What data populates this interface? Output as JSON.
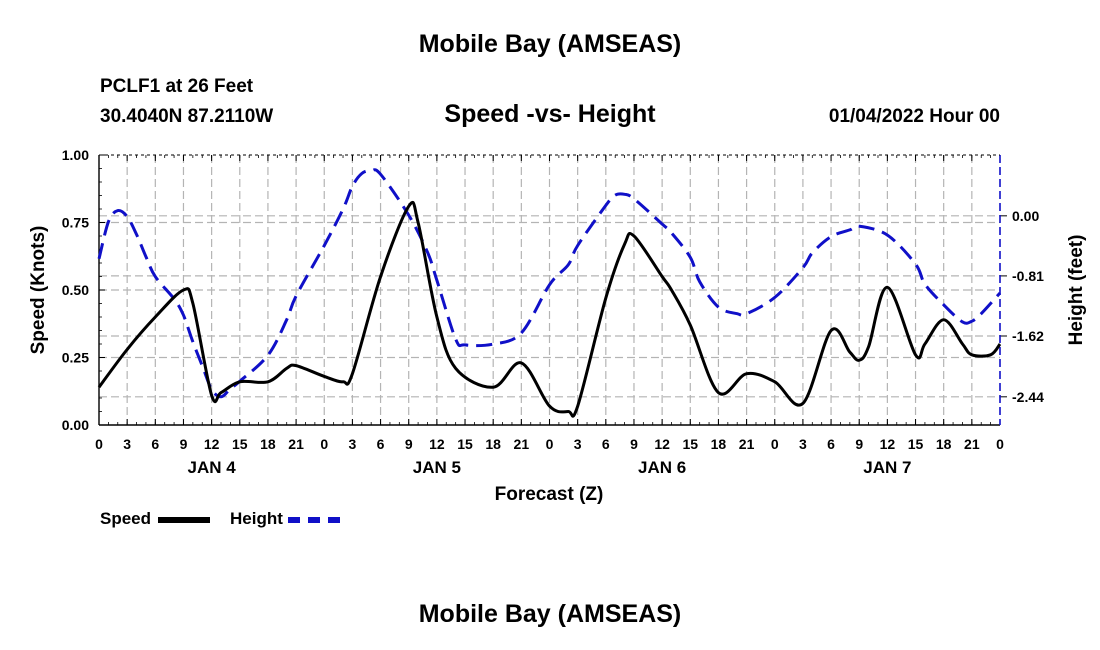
{
  "page": {
    "top_title": "Mobile Bay (AMSEAS)",
    "bottom_title": "Mobile Bay (AMSEAS)"
  },
  "header": {
    "station": "PCLF1 at 26 Feet",
    "coords": "30.4040N  87.2110W",
    "datetime": "01/04/2022 Hour 00"
  },
  "colors": {
    "speed": "#000000",
    "height": "#1010c8",
    "grid": "#b4b4b4"
  },
  "chart_data": {
    "type": "line",
    "title": "Speed -vs- Height",
    "xlabel": "Forecast (Z)",
    "ylabel": "Speed (Knots)",
    "y2label": "Height (feet)",
    "xlim": [
      0,
      96
    ],
    "ylim": [
      0,
      1.0
    ],
    "y2lim": [
      -2.82,
      0.82
    ],
    "x_ticks": [
      0,
      3,
      6,
      9,
      12,
      15,
      18,
      21,
      24,
      27,
      30,
      33,
      36,
      39,
      42,
      45,
      48,
      51,
      54,
      57,
      60,
      63,
      66,
      69,
      72,
      75,
      78,
      81,
      84,
      87,
      90,
      93,
      96
    ],
    "x_tick_labels": [
      "0",
      "3",
      "6",
      "9",
      "12",
      "15",
      "18",
      "21",
      "0",
      "3",
      "6",
      "9",
      "12",
      "15",
      "18",
      "21",
      "0",
      "3",
      "6",
      "9",
      "12",
      "15",
      "18",
      "21",
      "0",
      "3",
      "6",
      "9",
      "12",
      "15",
      "18",
      "21",
      "0"
    ],
    "y_ticks": [
      0.0,
      0.25,
      0.5,
      0.75,
      1.0
    ],
    "y_tick_labels": [
      "0.00",
      "0.25",
      "0.50",
      "0.75",
      "1.00"
    ],
    "y2_ticks": [
      0.0,
      -0.81,
      -1.62,
      -2.44
    ],
    "y2_tick_labels": [
      "0.00",
      "-0.81",
      "-1.62",
      "-2.44"
    ],
    "day_labels": [
      {
        "x": 12,
        "label": "JAN 4"
      },
      {
        "x": 36,
        "label": "JAN 5"
      },
      {
        "x": 60,
        "label": "JAN 6"
      },
      {
        "x": 84,
        "label": "JAN 7"
      }
    ],
    "grid": true,
    "series": [
      {
        "name": "Speed",
        "axis": "left",
        "style": "solid",
        "x": [
          0,
          3,
          6,
          9,
          10,
          12,
          13,
          15,
          18,
          20,
          21,
          24,
          26,
          27,
          30,
          33,
          34,
          36,
          38,
          42,
          45,
          48,
          50,
          51,
          54,
          56,
          57,
          60,
          61,
          63,
          66,
          69,
          72,
          75,
          78,
          80,
          81,
          82,
          84,
          87,
          88,
          90,
          92,
          93,
          95,
          96
        ],
        "values": [
          0.14,
          0.28,
          0.4,
          0.5,
          0.45,
          0.11,
          0.12,
          0.16,
          0.16,
          0.21,
          0.22,
          0.18,
          0.16,
          0.19,
          0.55,
          0.81,
          0.75,
          0.4,
          0.21,
          0.14,
          0.23,
          0.07,
          0.05,
          0.07,
          0.47,
          0.67,
          0.7,
          0.55,
          0.5,
          0.37,
          0.12,
          0.19,
          0.16,
          0.08,
          0.35,
          0.27,
          0.24,
          0.29,
          0.51,
          0.26,
          0.3,
          0.39,
          0.3,
          0.26,
          0.26,
          0.3
        ]
      },
      {
        "name": "Height",
        "axis": "right",
        "style": "dashed",
        "x": [
          0,
          1,
          2,
          3,
          4,
          5,
          6,
          8,
          9,
          10,
          11,
          12,
          13,
          14,
          15,
          18,
          20,
          21,
          24,
          26,
          27,
          28,
          29,
          30,
          33,
          35,
          36,
          38,
          39,
          42,
          45,
          48,
          50,
          51,
          54,
          55,
          56,
          57,
          60,
          61,
          63,
          64,
          66,
          68,
          69,
          72,
          75,
          76,
          78,
          80,
          81,
          84,
          87,
          88,
          90,
          92,
          93,
          94,
          96
        ],
        "values": [
          -0.58,
          -0.08,
          0.07,
          -0.01,
          -0.25,
          -0.55,
          -0.82,
          -1.12,
          -1.34,
          -1.7,
          -2.02,
          -2.34,
          -2.44,
          -2.33,
          -2.23,
          -1.88,
          -1.4,
          -1.08,
          -0.4,
          0.09,
          0.4,
          0.57,
          0.61,
          0.56,
          0.01,
          -0.49,
          -0.87,
          -1.66,
          -1.74,
          -1.73,
          -1.58,
          -0.93,
          -0.66,
          -0.4,
          0.14,
          0.28,
          0.29,
          0.23,
          -0.11,
          -0.23,
          -0.56,
          -0.89,
          -1.23,
          -1.32,
          -1.32,
          -1.1,
          -0.7,
          -0.5,
          -0.28,
          -0.19,
          -0.14,
          -0.26,
          -0.65,
          -0.92,
          -1.2,
          -1.43,
          -1.42,
          -1.32,
          -1.04
        ]
      }
    ],
    "legend": [
      {
        "label": "Speed",
        "style": "solid"
      },
      {
        "label": "Height",
        "style": "dashed"
      }
    ],
    "legend_position": "bottom-left"
  }
}
